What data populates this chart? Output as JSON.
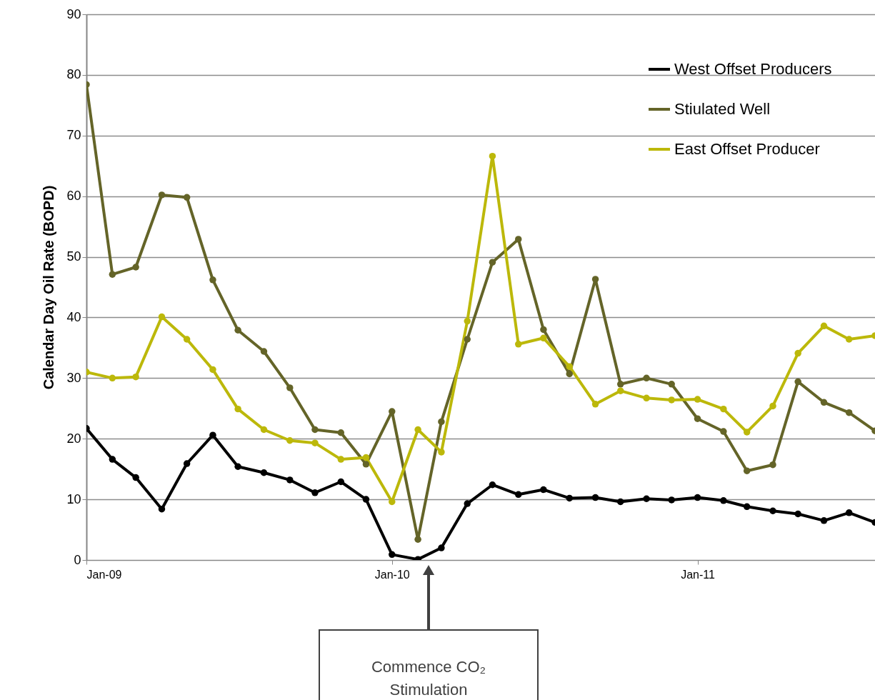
{
  "chart_data": {
    "type": "line",
    "ylabel": "Calendar Day Oil Rate (BOPD)",
    "x": [
      "2009-01",
      "2009-02",
      "2009-03",
      "2009-04",
      "2009-05",
      "2009-06",
      "2009-07",
      "2009-08",
      "2009-09",
      "2009-10",
      "2009-11",
      "2009-12",
      "2010-01",
      "2010-02",
      "2010-03",
      "2010-04",
      "2010-05",
      "2010-06",
      "2010-07",
      "2010-08",
      "2010-09",
      "2010-10",
      "2010-11",
      "2010-12",
      "2011-01",
      "2011-02",
      "2011-03",
      "2011-04",
      "2011-05",
      "2011-06",
      "2011-07",
      "2011-08"
    ],
    "series": [
      {
        "name": "West Offset Producers",
        "color": "#000000",
        "values": [
          21.7,
          16.6,
          13.6,
          8.4,
          15.9,
          20.6,
          15.4,
          14.4,
          13.2,
          11.1,
          12.9,
          10.0,
          0.9,
          0.1,
          2.0,
          9.3,
          12.4,
          10.8,
          11.6,
          10.2,
          10.3,
          9.6,
          10.1,
          9.9,
          10.3,
          9.8,
          8.8,
          8.1,
          7.6,
          6.5,
          7.8,
          6.2
        ]
      },
      {
        "name": "Stiulated Well",
        "color": "#646428",
        "values": [
          78.4,
          47.1,
          48.3,
          60.2,
          59.8,
          46.2,
          37.9,
          34.4,
          28.4,
          21.5,
          21.0,
          15.8,
          24.5,
          3.4,
          22.8,
          36.4,
          49.1,
          52.9,
          38.0,
          30.7,
          46.3,
          29.0,
          30.0,
          29.0,
          23.3,
          21.2,
          14.7,
          15.7,
          29.4,
          26.0,
          24.3,
          21.3
        ]
      },
      {
        "name": "East Offset Producer",
        "color": "#bcb80a",
        "values": [
          31.0,
          30.0,
          30.2,
          40.1,
          36.4,
          31.4,
          24.9,
          21.5,
          19.7,
          19.3,
          16.6,
          16.9,
          9.6,
          21.5,
          17.8,
          39.4,
          66.6,
          35.6,
          36.6,
          31.9,
          25.7,
          27.9,
          26.7,
          26.4,
          26.5,
          24.9,
          21.1,
          25.4,
          34.1,
          38.6,
          36.4,
          37.0
        ]
      }
    ],
    "xlim": [
      "2009-01",
      "2011-08"
    ],
    "xticks": [
      {
        "value": "2009-01",
        "label": "Jan-09"
      },
      {
        "value": "2010-01",
        "label": "Jan-10"
      },
      {
        "value": "2011-01",
        "label": "Jan-11"
      }
    ],
    "ylim": [
      0,
      90
    ],
    "yticks": [
      0,
      10,
      20,
      30,
      40,
      50,
      60,
      70,
      80,
      90
    ],
    "grid": "y",
    "legend": "top right",
    "marker": "circle",
    "line_style": "solid",
    "annotations": [
      "Commence CO₂\nStimulation"
    ]
  }
}
